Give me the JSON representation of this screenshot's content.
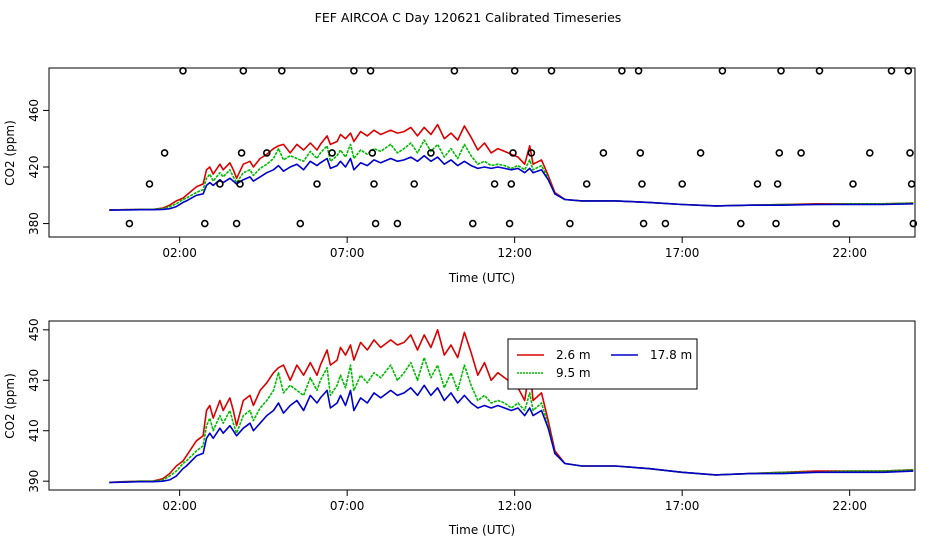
{
  "title": "FEF AIRCOA C  Day 120621  Calibrated Timeseries",
  "colors": {
    "s26": "#dd0000",
    "s95": "#00bb00",
    "s178": "#0000cc",
    "axis": "#000000"
  },
  "chart_data": [
    {
      "type": "scatter+line",
      "ylabel": "CO2 (ppm)",
      "xlabel": "Time (UTC)",
      "xlim": [
        -1.9,
        23.95
      ],
      "ylim": [
        370.5,
        490
      ],
      "xticks": [
        2,
        7,
        12,
        17,
        22
      ],
      "xtick_labels": [
        "02:00",
        "07:00",
        "12:00",
        "17:00",
        "22:00"
      ],
      "yticks": [
        380,
        420,
        460
      ],
      "ytick_labels": [
        "380",
        "420",
        "460"
      ],
      "calibration_points": [
        [
          0.5,
          380
        ],
        [
          1.1,
          408
        ],
        [
          1.55,
          430
        ],
        [
          2.1,
          488
        ],
        [
          2.75,
          380
        ],
        [
          3.2,
          408
        ],
        [
          3.7,
          380
        ],
        [
          3.8,
          408
        ],
        [
          3.85,
          430
        ],
        [
          3.9,
          488
        ],
        [
          4.6,
          430
        ],
        [
          5.05,
          488
        ],
        [
          5.6,
          380
        ],
        [
          6.1,
          408
        ],
        [
          6.55,
          430
        ],
        [
          7.2,
          488
        ],
        [
          7.7,
          488
        ],
        [
          7.75,
          430
        ],
        [
          7.8,
          408
        ],
        [
          7.85,
          380
        ],
        [
          8.5,
          380
        ],
        [
          9.0,
          408
        ],
        [
          9.5,
          430
        ],
        [
          10.2,
          488
        ],
        [
          10.75,
          380
        ],
        [
          11.4,
          408
        ],
        [
          11.85,
          380
        ],
        [
          11.9,
          408
        ],
        [
          11.95,
          430
        ],
        [
          12.0,
          488
        ],
        [
          12.5,
          430
        ],
        [
          13.1,
          488
        ],
        [
          13.65,
          380
        ],
        [
          14.15,
          408
        ],
        [
          14.65,
          430
        ],
        [
          15.2,
          488
        ],
        [
          15.7,
          488
        ],
        [
          15.75,
          430
        ],
        [
          15.8,
          408
        ],
        [
          15.85,
          380
        ],
        [
          16.5,
          380
        ],
        [
          17.0,
          408
        ],
        [
          17.55,
          430
        ],
        [
          18.2,
          488
        ],
        [
          18.75,
          380
        ],
        [
          19.25,
          408
        ],
        [
          19.8,
          380
        ],
        [
          19.85,
          408
        ],
        [
          19.9,
          430
        ],
        [
          19.95,
          488
        ],
        [
          20.55,
          430
        ],
        [
          21.1,
          488
        ],
        [
          21.6,
          380
        ],
        [
          22.1,
          408
        ],
        [
          22.6,
          430
        ],
        [
          23.25,
          488
        ],
        [
          23.75,
          488
        ],
        [
          23.8,
          430
        ],
        [
          23.85,
          408
        ],
        [
          23.9,
          380
        ]
      ]
    },
    {
      "type": "line",
      "ylabel": "CO2 (ppm)",
      "xlabel": "Time (UTC)",
      "xlim": [
        -1.9,
        23.95
      ],
      "ylim": [
        386.5,
        453.5
      ],
      "xticks": [
        2,
        7,
        12,
        17,
        22
      ],
      "xtick_labels": [
        "02:00",
        "07:00",
        "12:00",
        "17:00",
        "22:00"
      ],
      "yticks": [
        390,
        410,
        430,
        450
      ],
      "ytick_labels": [
        "390",
        "410",
        "430",
        "450"
      ],
      "legend": {
        "position": "top-right",
        "entries": [
          "2.6 m",
          "9.5 m",
          "17.8 m"
        ]
      }
    }
  ],
  "series": [
    {
      "name": "2.6 m",
      "x": [
        -0.1,
        0.3,
        0.8,
        1.2,
        1.5,
        1.7,
        1.9,
        2.1,
        2.2,
        2.5,
        2.7,
        2.8,
        2.9,
        3.0,
        3.2,
        3.3,
        3.5,
        3.6,
        3.7,
        3.9,
        4.1,
        4.2,
        4.4,
        4.6,
        4.8,
        4.95,
        5.1,
        5.3,
        5.5,
        5.7,
        5.9,
        6.1,
        6.2,
        6.4,
        6.5,
        6.7,
        6.8,
        6.95,
        7.1,
        7.2,
        7.4,
        7.6,
        7.8,
        8.0,
        8.3,
        8.5,
        8.7,
        8.9,
        9.1,
        9.3,
        9.5,
        9.7,
        9.9,
        10.1,
        10.3,
        10.5,
        10.7,
        10.9,
        11.1,
        11.3,
        11.5,
        11.7,
        11.9,
        12.1,
        12.3,
        12.45,
        12.55,
        12.8,
        13.0,
        13.2,
        13.5,
        14.0,
        15.0,
        16.0,
        17.0,
        18.0,
        19.0,
        20.0,
        21.0,
        22.0,
        23.0,
        23.9
      ],
      "values": [
        389.5,
        389.8,
        390,
        390,
        391,
        393,
        396,
        398,
        400,
        406,
        408,
        418,
        420,
        415,
        422,
        418,
        423,
        418,
        412,
        422,
        424,
        420,
        426,
        429,
        433,
        435,
        436,
        430,
        436,
        432,
        437,
        432,
        436,
        442,
        436,
        438,
        443,
        440,
        444,
        438,
        445,
        442,
        446,
        443,
        446,
        444,
        445,
        448,
        442,
        448,
        443,
        450,
        440,
        444,
        439,
        449,
        441,
        432,
        437,
        430,
        433,
        431,
        429,
        427,
        422,
        435,
        422,
        425,
        414,
        402,
        397,
        396,
        396,
        395,
        393.5,
        392.5,
        393,
        393.5,
        394,
        394,
        394,
        394.5
      ]
    },
    {
      "name": "9.5 m",
      "x": [
        -0.1,
        0.3,
        0.8,
        1.2,
        1.5,
        1.7,
        1.9,
        2.1,
        2.2,
        2.5,
        2.7,
        2.8,
        2.9,
        3.0,
        3.2,
        3.3,
        3.5,
        3.6,
        3.7,
        3.9,
        4.1,
        4.2,
        4.4,
        4.6,
        4.8,
        4.95,
        5.1,
        5.3,
        5.5,
        5.7,
        5.9,
        6.1,
        6.2,
        6.4,
        6.5,
        6.7,
        6.8,
        6.95,
        7.1,
        7.2,
        7.4,
        7.6,
        7.8,
        8.0,
        8.3,
        8.5,
        8.7,
        8.9,
        9.1,
        9.3,
        9.5,
        9.7,
        9.9,
        10.1,
        10.3,
        10.5,
        10.7,
        10.9,
        11.1,
        11.3,
        11.5,
        11.7,
        11.9,
        12.1,
        12.3,
        12.45,
        12.55,
        12.8,
        13.0,
        13.2,
        13.5,
        14.0,
        15.0,
        16.0,
        17.0,
        18.0,
        19.0,
        20.0,
        21.0,
        22.0,
        23.0,
        23.9
      ],
      "values": [
        389.5,
        389.7,
        390,
        390,
        390.5,
        392,
        394,
        397,
        398,
        402,
        404,
        412,
        415,
        410,
        416,
        413,
        418,
        413,
        409,
        416,
        418,
        414,
        419,
        422,
        426,
        433,
        425,
        428,
        426,
        424,
        431,
        426,
        430,
        435,
        424,
        428,
        432,
        427,
        436,
        426,
        432,
        429,
        433,
        431,
        436,
        430,
        433,
        437,
        430,
        439,
        431,
        436,
        427,
        433,
        426,
        436,
        428,
        422,
        424,
        421,
        422,
        421,
        419,
        421,
        418,
        425,
        418,
        421,
        412,
        401,
        397,
        396,
        396,
        395,
        393.5,
        392.5,
        393,
        393.5,
        393.5,
        394,
        394,
        394.5
      ]
    },
    {
      "name": "17.8 m",
      "x": [
        -0.1,
        0.3,
        0.8,
        1.2,
        1.5,
        1.7,
        1.9,
        2.1,
        2.2,
        2.5,
        2.7,
        2.8,
        2.9,
        3.0,
        3.2,
        3.3,
        3.5,
        3.6,
        3.7,
        3.9,
        4.1,
        4.2,
        4.4,
        4.6,
        4.8,
        4.95,
        5.1,
        5.3,
        5.5,
        5.7,
        5.9,
        6.1,
        6.2,
        6.4,
        6.5,
        6.7,
        6.8,
        6.95,
        7.1,
        7.2,
        7.4,
        7.6,
        7.8,
        8.0,
        8.3,
        8.5,
        8.7,
        8.9,
        9.1,
        9.3,
        9.5,
        9.7,
        9.9,
        10.1,
        10.3,
        10.5,
        10.7,
        10.9,
        11.1,
        11.3,
        11.5,
        11.7,
        11.9,
        12.1,
        12.3,
        12.45,
        12.55,
        12.8,
        13.0,
        13.2,
        13.5,
        14.0,
        15.0,
        16.0,
        17.0,
        18.0,
        19.0,
        20.0,
        21.0,
        22.0,
        23.0,
        23.9
      ],
      "values": [
        389.5,
        389.6,
        389.8,
        389.8,
        390,
        390.5,
        392,
        395,
        396,
        400,
        401,
        407,
        409,
        407,
        411,
        409,
        412,
        410,
        408,
        411,
        413,
        410,
        413,
        416,
        418,
        421,
        417,
        420,
        422,
        418,
        424,
        421,
        423,
        426,
        419,
        421,
        424,
        420,
        426,
        418,
        423,
        421,
        425,
        423,
        426,
        424,
        425,
        427,
        424,
        428,
        424,
        427,
        422,
        425,
        421,
        424,
        421,
        419,
        420,
        419,
        420,
        419,
        418,
        419,
        416,
        419,
        416,
        418,
        411,
        401,
        397,
        396,
        396,
        395,
        393.5,
        392.5,
        393,
        393,
        393.5,
        393.5,
        393.5,
        394
      ]
    }
  ]
}
